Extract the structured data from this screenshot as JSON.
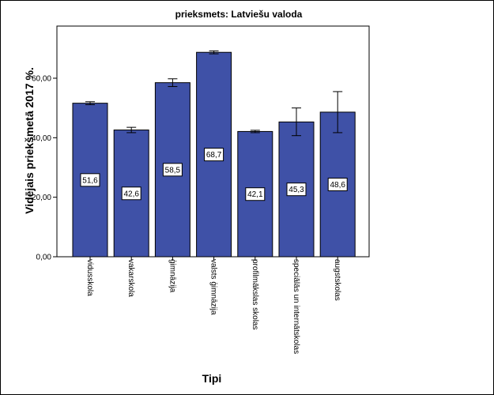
{
  "chart_data": {
    "type": "bar",
    "title": "prieksmets: Latviešu valoda",
    "xlabel": "Tipi",
    "ylabel": "Vidējais priekšmetā 2017 %.",
    "ylim": [
      0,
      60
    ],
    "yticks": [
      "0,00",
      "20,00",
      "40,00",
      "60,00"
    ],
    "grid": false,
    "categories": [
      "vidusskola",
      "vakarskola",
      "ģimnāzija",
      "valsts ģimnāzija",
      "profilmākslas skolas",
      "speciālās un internātskolas",
      "augstskolas"
    ],
    "values": [
      51.6,
      42.6,
      58.5,
      68.7,
      42.1,
      45.3,
      48.6
    ],
    "value_labels": [
      "51,6",
      "42,6",
      "58,5",
      "68,7",
      "42,1",
      "45,3",
      "48,6"
    ],
    "error_low": [
      51.1,
      41.7,
      57.2,
      68.2,
      41.7,
      40.7,
      41.7
    ],
    "error_high": [
      52.1,
      43.5,
      59.8,
      69.2,
      42.5,
      50.0,
      55.5
    ],
    "colors": {
      "bar": "#3f51a7",
      "bar_stroke": "#000000",
      "plot_bg": "#ffffff"
    }
  }
}
